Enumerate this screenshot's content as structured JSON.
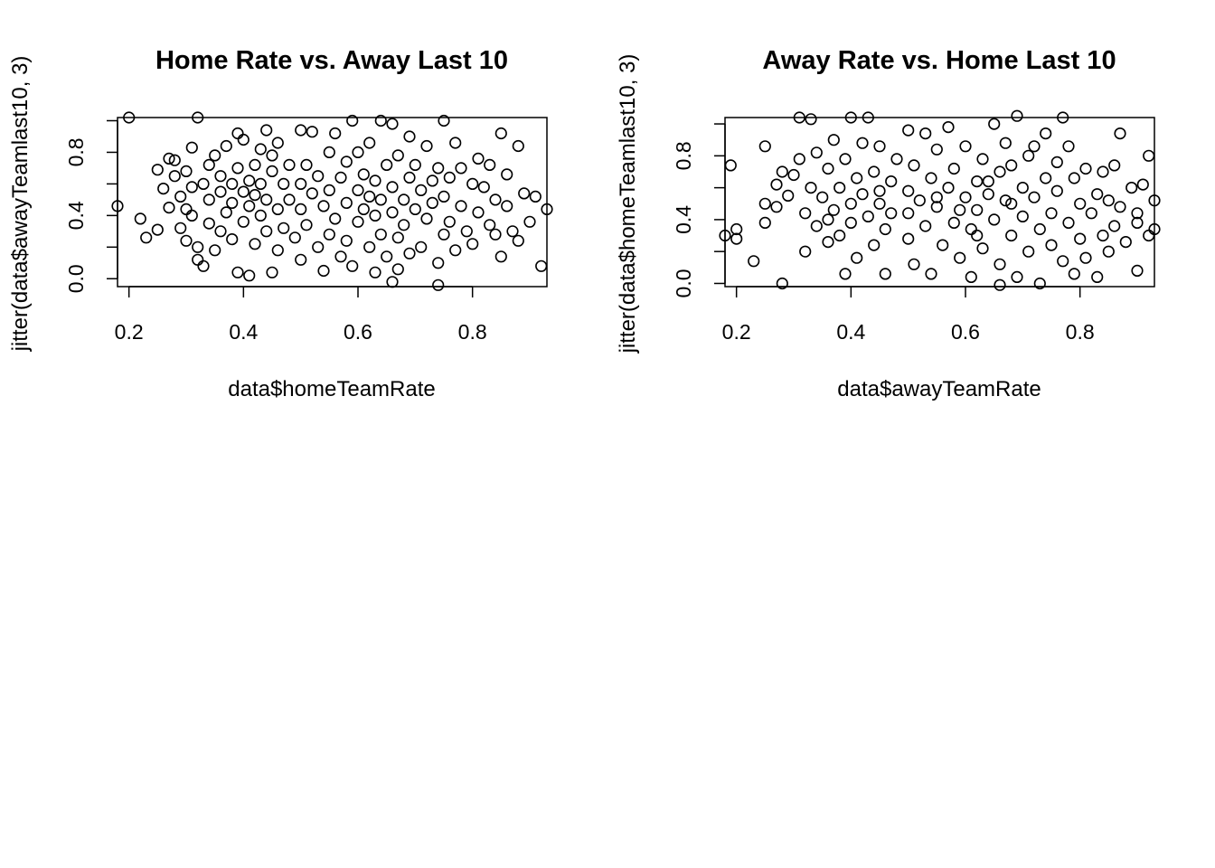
{
  "chart_data": [
    {
      "type": "scatter",
      "title": "Home Rate vs. Away Last 10",
      "xlabel": "data$homeTeamRate",
      "ylabel": "jitter(data$awayTeamlast10, 3)",
      "xlim": [
        0.18,
        0.93
      ],
      "ylim": [
        -0.05,
        1.02
      ],
      "xticks": [
        "0.2",
        "0.4",
        "0.6",
        "0.8"
      ],
      "yticks": [
        "0.0",
        "0.4",
        "0.8"
      ],
      "grid": false,
      "point_color": "#000000",
      "points": [
        [
          0.18,
          0.46
        ],
        [
          0.2,
          1.02
        ],
        [
          0.22,
          0.38
        ],
        [
          0.23,
          0.26
        ],
        [
          0.25,
          0.31
        ],
        [
          0.25,
          0.69
        ],
        [
          0.26,
          0.57
        ],
        [
          0.27,
          0.76
        ],
        [
          0.27,
          0.45
        ],
        [
          0.28,
          0.65
        ],
        [
          0.28,
          0.75
        ],
        [
          0.29,
          0.52
        ],
        [
          0.29,
          0.32
        ],
        [
          0.3,
          0.24
        ],
        [
          0.3,
          0.68
        ],
        [
          0.3,
          0.44
        ],
        [
          0.31,
          0.83
        ],
        [
          0.31,
          0.58
        ],
        [
          0.31,
          0.4
        ],
        [
          0.32,
          0.12
        ],
        [
          0.32,
          1.02
        ],
        [
          0.32,
          0.2
        ],
        [
          0.33,
          0.08
        ],
        [
          0.33,
          0.6
        ],
        [
          0.34,
          0.72
        ],
        [
          0.34,
          0.35
        ],
        [
          0.34,
          0.5
        ],
        [
          0.35,
          0.18
        ],
        [
          0.35,
          0.78
        ],
        [
          0.36,
          0.65
        ],
        [
          0.36,
          0.3
        ],
        [
          0.36,
          0.55
        ],
        [
          0.37,
          0.42
        ],
        [
          0.37,
          0.84
        ],
        [
          0.38,
          0.25
        ],
        [
          0.38,
          0.6
        ],
        [
          0.38,
          0.48
        ],
        [
          0.39,
          0.92
        ],
        [
          0.39,
          0.7
        ],
        [
          0.39,
          0.04
        ],
        [
          0.4,
          0.88
        ],
        [
          0.4,
          0.55
        ],
        [
          0.4,
          0.36
        ],
        [
          0.41,
          0.02
        ],
        [
          0.41,
          0.62
        ],
        [
          0.41,
          0.46
        ],
        [
          0.42,
          0.72
        ],
        [
          0.42,
          0.22
        ],
        [
          0.42,
          0.53
        ],
        [
          0.43,
          0.82
        ],
        [
          0.43,
          0.4
        ],
        [
          0.43,
          0.6
        ],
        [
          0.44,
          0.3
        ],
        [
          0.44,
          0.94
        ],
        [
          0.44,
          0.5
        ],
        [
          0.45,
          0.68
        ],
        [
          0.45,
          0.04
        ],
        [
          0.45,
          0.78
        ],
        [
          0.46,
          0.18
        ],
        [
          0.46,
          0.44
        ],
        [
          0.46,
          0.86
        ],
        [
          0.47,
          0.6
        ],
        [
          0.47,
          0.32
        ],
        [
          0.48,
          0.72
        ],
        [
          0.48,
          0.5
        ],
        [
          0.49,
          0.26
        ],
        [
          0.5,
          0.94
        ],
        [
          0.5,
          0.6
        ],
        [
          0.5,
          0.44
        ],
        [
          0.5,
          0.12
        ],
        [
          0.51,
          0.72
        ],
        [
          0.51,
          0.34
        ],
        [
          0.52,
          0.54
        ],
        [
          0.52,
          0.93
        ],
        [
          0.53,
          0.2
        ],
        [
          0.53,
          0.65
        ],
        [
          0.54,
          0.46
        ],
        [
          0.54,
          0.05
        ],
        [
          0.55,
          0.28
        ],
        [
          0.55,
          0.8
        ],
        [
          0.55,
          0.56
        ],
        [
          0.56,
          0.38
        ],
        [
          0.56,
          0.92
        ],
        [
          0.57,
          0.14
        ],
        [
          0.57,
          0.64
        ],
        [
          0.58,
          0.48
        ],
        [
          0.58,
          0.74
        ],
        [
          0.58,
          0.24
        ],
        [
          0.59,
          1.0
        ],
        [
          0.59,
          0.08
        ],
        [
          0.6,
          0.56
        ],
        [
          0.6,
          0.36
        ],
        [
          0.6,
          0.8
        ],
        [
          0.61,
          0.44
        ],
        [
          0.61,
          0.66
        ],
        [
          0.62,
          0.2
        ],
        [
          0.62,
          0.52
        ],
        [
          0.62,
          0.86
        ],
        [
          0.63,
          0.04
        ],
        [
          0.63,
          0.4
        ],
        [
          0.63,
          0.62
        ],
        [
          0.64,
          1.0
        ],
        [
          0.64,
          0.28
        ],
        [
          0.64,
          0.5
        ],
        [
          0.65,
          0.72
        ],
        [
          0.65,
          0.14
        ],
        [
          0.66,
          0.98
        ],
        [
          0.66,
          0.42
        ],
        [
          0.66,
          0.58
        ],
        [
          0.66,
          -0.02
        ],
        [
          0.67,
          0.26
        ],
        [
          0.67,
          0.78
        ],
        [
          0.67,
          0.06
        ],
        [
          0.68,
          0.5
        ],
        [
          0.68,
          0.34
        ],
        [
          0.69,
          0.9
        ],
        [
          0.69,
          0.64
        ],
        [
          0.69,
          0.16
        ],
        [
          0.7,
          0.44
        ],
        [
          0.7,
          0.72
        ],
        [
          0.71,
          0.56
        ],
        [
          0.71,
          0.2
        ],
        [
          0.72,
          0.84
        ],
        [
          0.72,
          0.38
        ],
        [
          0.73,
          0.62
        ],
        [
          0.73,
          0.48
        ],
        [
          0.74,
          0.1
        ],
        [
          0.74,
          0.7
        ],
        [
          0.74,
          -0.04
        ],
        [
          0.75,
          0.28
        ],
        [
          0.75,
          0.52
        ],
        [
          0.75,
          1.0
        ],
        [
          0.76,
          0.36
        ],
        [
          0.76,
          0.64
        ],
        [
          0.77,
          0.86
        ],
        [
          0.77,
          0.18
        ],
        [
          0.78,
          0.46
        ],
        [
          0.78,
          0.7
        ],
        [
          0.79,
          0.3
        ],
        [
          0.8,
          0.6
        ],
        [
          0.8,
          0.22
        ],
        [
          0.81,
          0.42
        ],
        [
          0.81,
          0.76
        ],
        [
          0.82,
          0.58
        ],
        [
          0.83,
          0.34
        ],
        [
          0.83,
          0.72
        ],
        [
          0.84,
          0.28
        ],
        [
          0.84,
          0.5
        ],
        [
          0.85,
          0.92
        ],
        [
          0.85,
          0.14
        ],
        [
          0.86,
          0.46
        ],
        [
          0.86,
          0.66
        ],
        [
          0.87,
          0.3
        ],
        [
          0.88,
          0.84
        ],
        [
          0.88,
          0.24
        ],
        [
          0.89,
          0.54
        ],
        [
          0.9,
          0.36
        ],
        [
          0.91,
          0.52
        ],
        [
          0.92,
          0.08
        ],
        [
          0.93,
          0.44
        ]
      ]
    },
    {
      "type": "scatter",
      "title": "Away Rate vs. Home Last 10",
      "xlabel": "data$awayTeamRate",
      "ylabel": "jitter(data$homeTeamlast10, 3)",
      "xlim": [
        0.18,
        0.93
      ],
      "ylim": [
        -0.02,
        1.04
      ],
      "xticks": [
        "0.2",
        "0.4",
        "0.6",
        "0.8"
      ],
      "yticks": [
        "0.0",
        "0.4",
        "0.8"
      ],
      "grid": false,
      "point_color": "#000000",
      "points": [
        [
          0.18,
          0.3
        ],
        [
          0.19,
          0.74
        ],
        [
          0.2,
          0.34
        ],
        [
          0.2,
          0.28
        ],
        [
          0.23,
          0.14
        ],
        [
          0.25,
          0.86
        ],
        [
          0.25,
          0.38
        ],
        [
          0.25,
          0.5
        ],
        [
          0.27,
          0.62
        ],
        [
          0.27,
          0.48
        ],
        [
          0.28,
          0.0
        ],
        [
          0.28,
          0.7
        ],
        [
          0.29,
          0.55
        ],
        [
          0.3,
          0.68
        ],
        [
          0.31,
          0.78
        ],
        [
          0.31,
          1.04
        ],
        [
          0.32,
          0.44
        ],
        [
          0.32,
          0.2
        ],
        [
          0.33,
          1.03
        ],
        [
          0.33,
          0.6
        ],
        [
          0.34,
          0.36
        ],
        [
          0.34,
          0.82
        ],
        [
          0.35,
          0.54
        ],
        [
          0.36,
          0.26
        ],
        [
          0.36,
          0.72
        ],
        [
          0.37,
          0.46
        ],
        [
          0.37,
          0.9
        ],
        [
          0.38,
          0.6
        ],
        [
          0.38,
          0.3
        ],
        [
          0.39,
          0.06
        ],
        [
          0.39,
          0.78
        ],
        [
          0.4,
          0.5
        ],
        [
          0.4,
          1.04
        ],
        [
          0.4,
          0.38
        ],
        [
          0.41,
          0.66
        ],
        [
          0.41,
          0.16
        ],
        [
          0.42,
          0.56
        ],
        [
          0.42,
          0.88
        ],
        [
          0.43,
          1.04
        ],
        [
          0.43,
          0.42
        ],
        [
          0.44,
          0.7
        ],
        [
          0.44,
          0.24
        ],
        [
          0.45,
          0.58
        ],
        [
          0.45,
          0.86
        ],
        [
          0.46,
          0.34
        ],
        [
          0.46,
          0.06
        ],
        [
          0.47,
          0.64
        ],
        [
          0.47,
          0.44
        ],
        [
          0.48,
          0.78
        ],
        [
          0.5,
          0.96
        ],
        [
          0.5,
          0.58
        ],
        [
          0.5,
          0.28
        ],
        [
          0.5,
          0.44
        ],
        [
          0.51,
          0.74
        ],
        [
          0.51,
          0.12
        ],
        [
          0.52,
          0.52
        ],
        [
          0.53,
          0.94
        ],
        [
          0.53,
          0.36
        ],
        [
          0.54,
          0.66
        ],
        [
          0.54,
          0.06
        ],
        [
          0.55,
          0.84
        ],
        [
          0.55,
          0.48
        ],
        [
          0.56,
          0.24
        ],
        [
          0.57,
          0.6
        ],
        [
          0.57,
          0.98
        ],
        [
          0.58,
          0.38
        ],
        [
          0.58,
          0.72
        ],
        [
          0.59,
          0.16
        ],
        [
          0.6,
          0.54
        ],
        [
          0.6,
          0.86
        ],
        [
          0.61,
          0.34
        ],
        [
          0.61,
          0.04
        ],
        [
          0.62,
          0.64
        ],
        [
          0.62,
          0.46
        ],
        [
          0.63,
          0.22
        ],
        [
          0.63,
          0.78
        ],
        [
          0.64,
          0.56
        ],
        [
          0.65,
          1.0
        ],
        [
          0.65,
          0.4
        ],
        [
          0.66,
          0.7
        ],
        [
          0.66,
          -0.01
        ],
        [
          0.66,
          0.12
        ],
        [
          0.67,
          0.52
        ],
        [
          0.67,
          0.88
        ],
        [
          0.68,
          0.3
        ],
        [
          0.68,
          0.74
        ],
        [
          0.69,
          1.05
        ],
        [
          0.69,
          0.04
        ],
        [
          0.7,
          0.6
        ],
        [
          0.7,
          0.42
        ],
        [
          0.71,
          0.8
        ],
        [
          0.71,
          0.2
        ],
        [
          0.72,
          0.54
        ],
        [
          0.72,
          0.86
        ],
        [
          0.73,
          0.34
        ],
        [
          0.73,
          0.0
        ],
        [
          0.74,
          0.66
        ],
        [
          0.74,
          0.94
        ],
        [
          0.75,
          0.44
        ],
        [
          0.75,
          0.24
        ],
        [
          0.76,
          0.76
        ],
        [
          0.76,
          0.58
        ],
        [
          0.77,
          1.04
        ],
        [
          0.77,
          0.14
        ],
        [
          0.78,
          0.38
        ],
        [
          0.78,
          0.86
        ],
        [
          0.79,
          0.66
        ],
        [
          0.79,
          0.06
        ],
        [
          0.8,
          0.5
        ],
        [
          0.8,
          0.28
        ],
        [
          0.81,
          0.72
        ],
        [
          0.81,
          0.16
        ],
        [
          0.82,
          0.44
        ],
        [
          0.83,
          0.56
        ],
        [
          0.83,
          0.04
        ],
        [
          0.84,
          0.3
        ],
        [
          0.84,
          0.7
        ],
        [
          0.85,
          0.2
        ],
        [
          0.85,
          0.52
        ],
        [
          0.86,
          0.74
        ],
        [
          0.86,
          0.36
        ],
        [
          0.87,
          0.94
        ],
        [
          0.87,
          0.48
        ],
        [
          0.88,
          0.26
        ],
        [
          0.89,
          0.6
        ],
        [
          0.9,
          0.44
        ],
        [
          0.9,
          0.08
        ],
        [
          0.9,
          0.38
        ],
        [
          0.91,
          0.62
        ],
        [
          0.92,
          0.3
        ],
        [
          0.92,
          0.8
        ],
        [
          0.93,
          0.52
        ],
        [
          0.93,
          0.34
        ],
        [
          0.59,
          0.46
        ],
        [
          0.64,
          0.64
        ],
        [
          0.68,
          0.5
        ],
        [
          0.45,
          0.5
        ],
        [
          0.36,
          0.4
        ],
        [
          0.55,
          0.54
        ],
        [
          0.62,
          0.3
        ]
      ]
    }
  ]
}
